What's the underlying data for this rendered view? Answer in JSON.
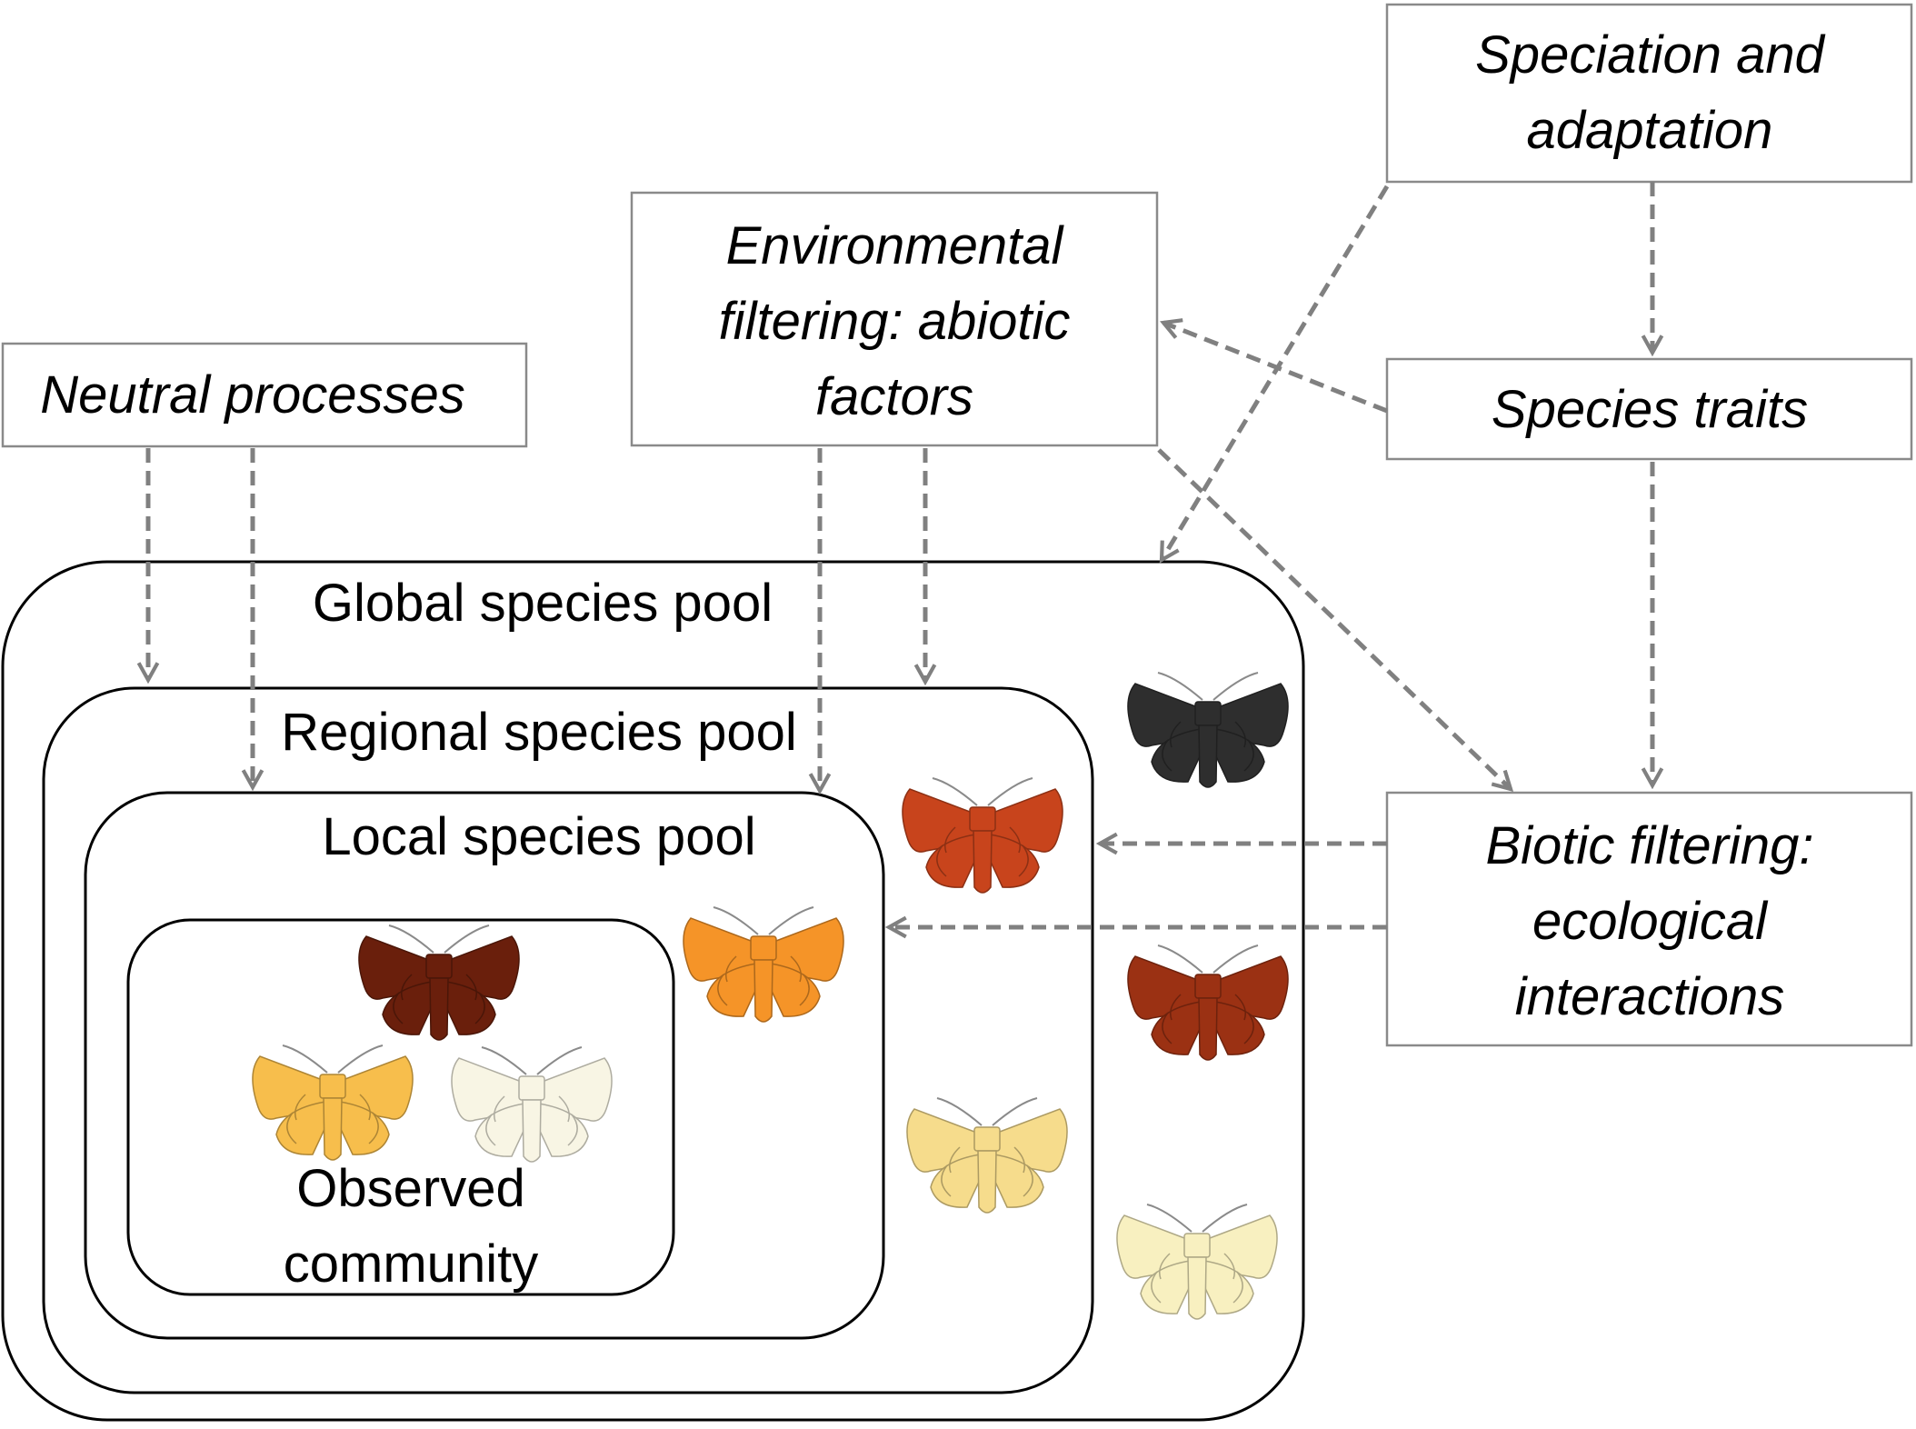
{
  "boxes": {
    "speciation": {
      "lines": [
        "Speciation and",
        "adaptation"
      ]
    },
    "environmental": {
      "lines": [
        "Environmental",
        "filtering: abiotic",
        "factors"
      ]
    },
    "neutral": {
      "lines": [
        "Neutral processes"
      ]
    },
    "traits": {
      "lines": [
        "Species traits"
      ]
    },
    "biotic": {
      "lines": [
        "Biotic filtering:",
        "ecological",
        "interactions"
      ]
    }
  },
  "pools": {
    "global": {
      "label": "Global species pool"
    },
    "regional": {
      "label": "Regional species pool"
    },
    "local": {
      "label": "Local species pool"
    },
    "observed": {
      "lines": [
        "Observed",
        "community"
      ]
    }
  },
  "colors": {
    "arrow": "#808080",
    "box_border": "#8a8a8a",
    "pool_border": "#000000"
  },
  "moths": [
    {
      "id": "global-black",
      "color": "#2e2e2e"
    },
    {
      "id": "global-rust",
      "color": "#9b3113"
    },
    {
      "id": "global-pale-yellow",
      "color": "#f8f0c0"
    },
    {
      "id": "regional-orange-red",
      "color": "#c8441c"
    },
    {
      "id": "regional-light-yellow",
      "color": "#f6dc8c"
    },
    {
      "id": "local-orange",
      "color": "#f59428"
    },
    {
      "id": "observed-dark-brown",
      "color": "#6a1f0c"
    },
    {
      "id": "observed-gold",
      "color": "#f7be4c"
    },
    {
      "id": "observed-cream",
      "color": "#f8f5e4"
    }
  ]
}
